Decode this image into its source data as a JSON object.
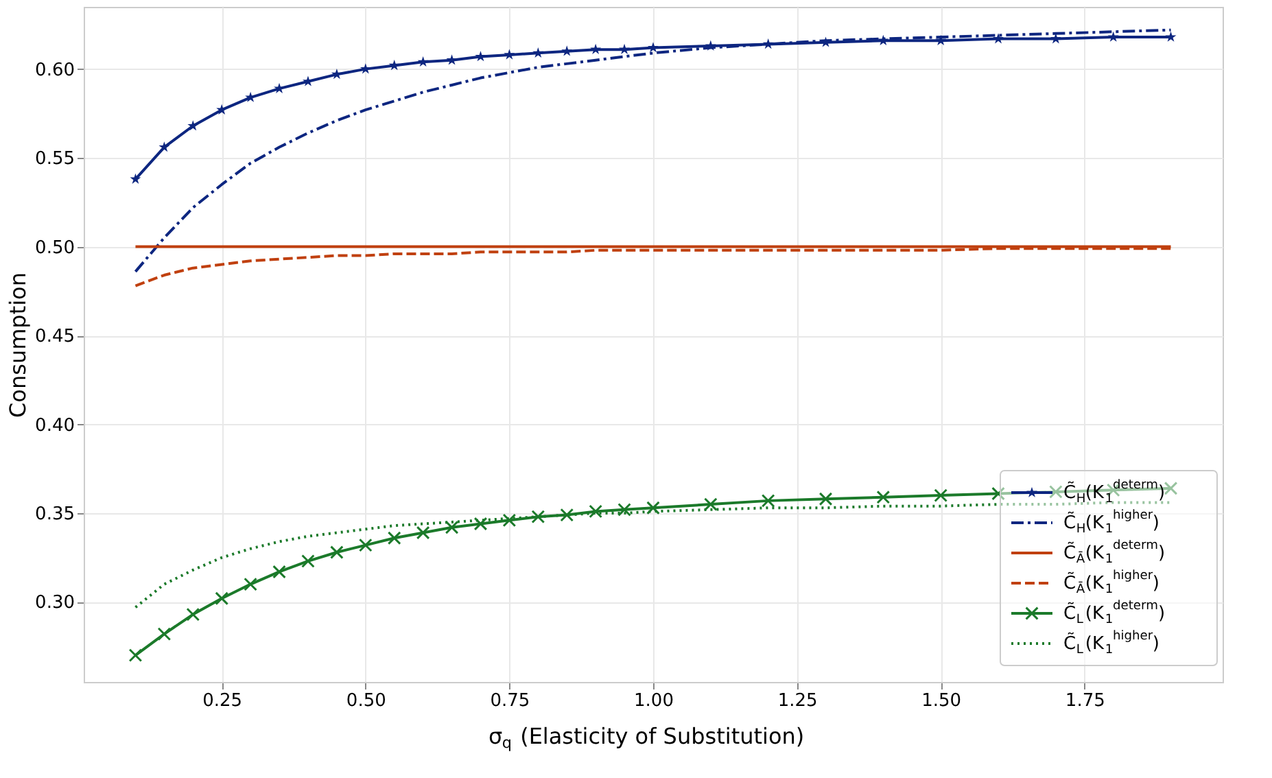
{
  "chart_data": {
    "type": "line",
    "xlabel": "σ$_{q}$ (Elasticity of Substitution)",
    "ylabel": "Consumption",
    "x": [
      0.1,
      0.15,
      0.2,
      0.25,
      0.3,
      0.35,
      0.4,
      0.45,
      0.5,
      0.55,
      0.6,
      0.65,
      0.7,
      0.75,
      0.8,
      0.85,
      0.9,
      0.95,
      1.0,
      1.1,
      1.2,
      1.3,
      1.4,
      1.5,
      1.6,
      1.7,
      1.8,
      1.9
    ],
    "series": [
      {
        "name": "C̃$_{H}$(K$_{1}$$^{determ}$)",
        "color": "#0d2680",
        "line_style": "solid",
        "marker": "star",
        "values": [
          0.538,
          0.556,
          0.568,
          0.577,
          0.584,
          0.589,
          0.593,
          0.597,
          0.6,
          0.602,
          0.604,
          0.605,
          0.607,
          0.608,
          0.609,
          0.61,
          0.611,
          0.611,
          0.612,
          0.613,
          0.614,
          0.615,
          0.616,
          0.616,
          0.617,
          0.617,
          0.618,
          0.618
        ]
      },
      {
        "name": "C̃$_{H}$(K$_{1}$$^{higher}$)",
        "color": "#0d2680",
        "line_style": "dashdot",
        "marker": "none",
        "values": [
          0.486,
          0.505,
          0.522,
          0.535,
          0.547,
          0.556,
          0.564,
          0.571,
          0.577,
          0.582,
          0.587,
          0.591,
          0.595,
          0.598,
          0.601,
          0.603,
          0.605,
          0.607,
          0.609,
          0.612,
          0.614,
          0.616,
          0.617,
          0.618,
          0.619,
          0.62,
          0.621,
          0.622
        ]
      },
      {
        "name": "C̃$_{Ā}$(K$_{1}$$^{determ}$)",
        "color": "#c0400f",
        "line_style": "solid",
        "marker": "none",
        "values": [
          0.5,
          0.5,
          0.5,
          0.5,
          0.5,
          0.5,
          0.5,
          0.5,
          0.5,
          0.5,
          0.5,
          0.5,
          0.5,
          0.5,
          0.5,
          0.5,
          0.5,
          0.5,
          0.5,
          0.5,
          0.5,
          0.5,
          0.5,
          0.5,
          0.5,
          0.5,
          0.5,
          0.5
        ]
      },
      {
        "name": "C̃$_{Ā}$(K$_{1}$$^{higher}$)",
        "color": "#c0400f",
        "line_style": "dashed",
        "marker": "none",
        "values": [
          0.478,
          0.484,
          0.488,
          0.49,
          0.492,
          0.493,
          0.494,
          0.495,
          0.495,
          0.496,
          0.496,
          0.496,
          0.497,
          0.497,
          0.497,
          0.497,
          0.498,
          0.498,
          0.498,
          0.498,
          0.498,
          0.498,
          0.498,
          0.498,
          0.499,
          0.499,
          0.499,
          0.499
        ]
      },
      {
        "name": "C̃$_{L}$(K$_{1}$$^{determ}$)",
        "color": "#1b7a2a",
        "line_style": "solid",
        "marker": "cross",
        "values": [
          0.27,
          0.282,
          0.293,
          0.302,
          0.31,
          0.317,
          0.323,
          0.328,
          0.332,
          0.336,
          0.339,
          0.342,
          0.344,
          0.346,
          0.348,
          0.349,
          0.351,
          0.352,
          0.353,
          0.355,
          0.357,
          0.358,
          0.359,
          0.36,
          0.361,
          0.362,
          0.363,
          0.364
        ]
      },
      {
        "name": "C̃$_{L}$(K$_{1}$$^{higher}$)",
        "color": "#1b7a2a",
        "line_style": "dotted",
        "marker": "none",
        "values": [
          0.297,
          0.31,
          0.318,
          0.325,
          0.33,
          0.334,
          0.337,
          0.339,
          0.341,
          0.343,
          0.344,
          0.345,
          0.346,
          0.347,
          0.348,
          0.349,
          0.35,
          0.35,
          0.351,
          0.352,
          0.353,
          0.353,
          0.354,
          0.354,
          0.355,
          0.355,
          0.356,
          0.356
        ]
      }
    ],
    "xlim": [
      0.01,
      1.99
    ],
    "ylim": [
      0.255,
      0.635
    ],
    "xticks": [
      0.25,
      {
        "value": 0.5,
        "label": "0.50"
      },
      0.75,
      {
        "value": 1.0,
        "label": "1.00"
      },
      1.25,
      {
        "value": 1.5,
        "label": "1.50"
      },
      1.75
    ],
    "yticks": [
      {
        "value": 0.3,
        "label": "0.30"
      },
      0.35,
      {
        "value": 0.4,
        "label": "0.40"
      },
      0.45,
      {
        "value": 0.5,
        "label": "0.50"
      },
      0.55,
      {
        "value": 0.6,
        "label": "0.60"
      }
    ],
    "grid": true,
    "legend": "bottom right"
  }
}
